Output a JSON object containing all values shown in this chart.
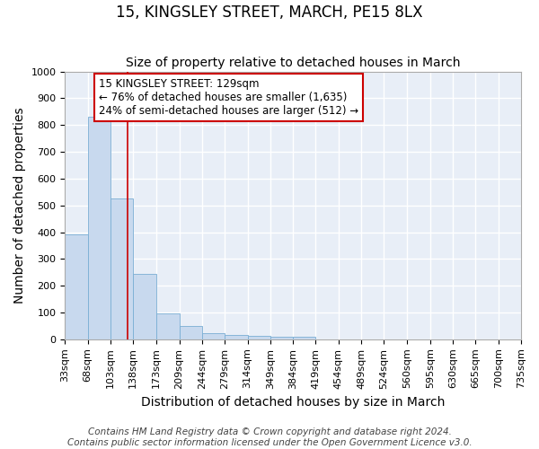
{
  "title": "15, KINGSLEY STREET, MARCH, PE15 8LX",
  "subtitle": "Size of property relative to detached houses in March",
  "xlabel": "Distribution of detached houses by size in March",
  "ylabel": "Number of detached properties",
  "footer_line1": "Contains HM Land Registry data © Crown copyright and database right 2024.",
  "footer_line2": "Contains public sector information licensed under the Open Government Licence v3.0.",
  "bin_edges": [
    33,
    68,
    103,
    138,
    173,
    209,
    244,
    279,
    314,
    349,
    384,
    419,
    454,
    489,
    524,
    560,
    595,
    630,
    665,
    700,
    735
  ],
  "bar_heights": [
    390,
    830,
    525,
    243,
    96,
    50,
    22,
    17,
    12,
    9,
    9,
    0,
    0,
    0,
    0,
    0,
    0,
    0,
    0,
    0
  ],
  "bar_color": "#c8d9ee",
  "bar_edge_color": "#7aaed4",
  "property_size": 129,
  "property_line_color": "#cc0000",
  "annotation_line1": "15 KINGSLEY STREET: 129sqm",
  "annotation_line2": "← 76% of detached houses are smaller (1,635)",
  "annotation_line3": "24% of semi-detached houses are larger (512) →",
  "annotation_box_color": "#ffffff",
  "annotation_box_edge_color": "#cc0000",
  "ylim": [
    0,
    1000
  ],
  "xlim_left": 33,
  "xlim_right": 735,
  "yticks": [
    0,
    100,
    200,
    300,
    400,
    500,
    600,
    700,
    800,
    900,
    1000
  ],
  "tick_label_fontsize": 8,
  "axis_label_fontsize": 10,
  "title_fontsize": 12,
  "subtitle_fontsize": 10,
  "annotation_fontsize": 8.5,
  "footer_fontsize": 7.5,
  "bg_color": "#ffffff",
  "plot_bg_color": "#e8eef7",
  "grid_color": "#ffffff",
  "grid_linewidth": 1.0
}
